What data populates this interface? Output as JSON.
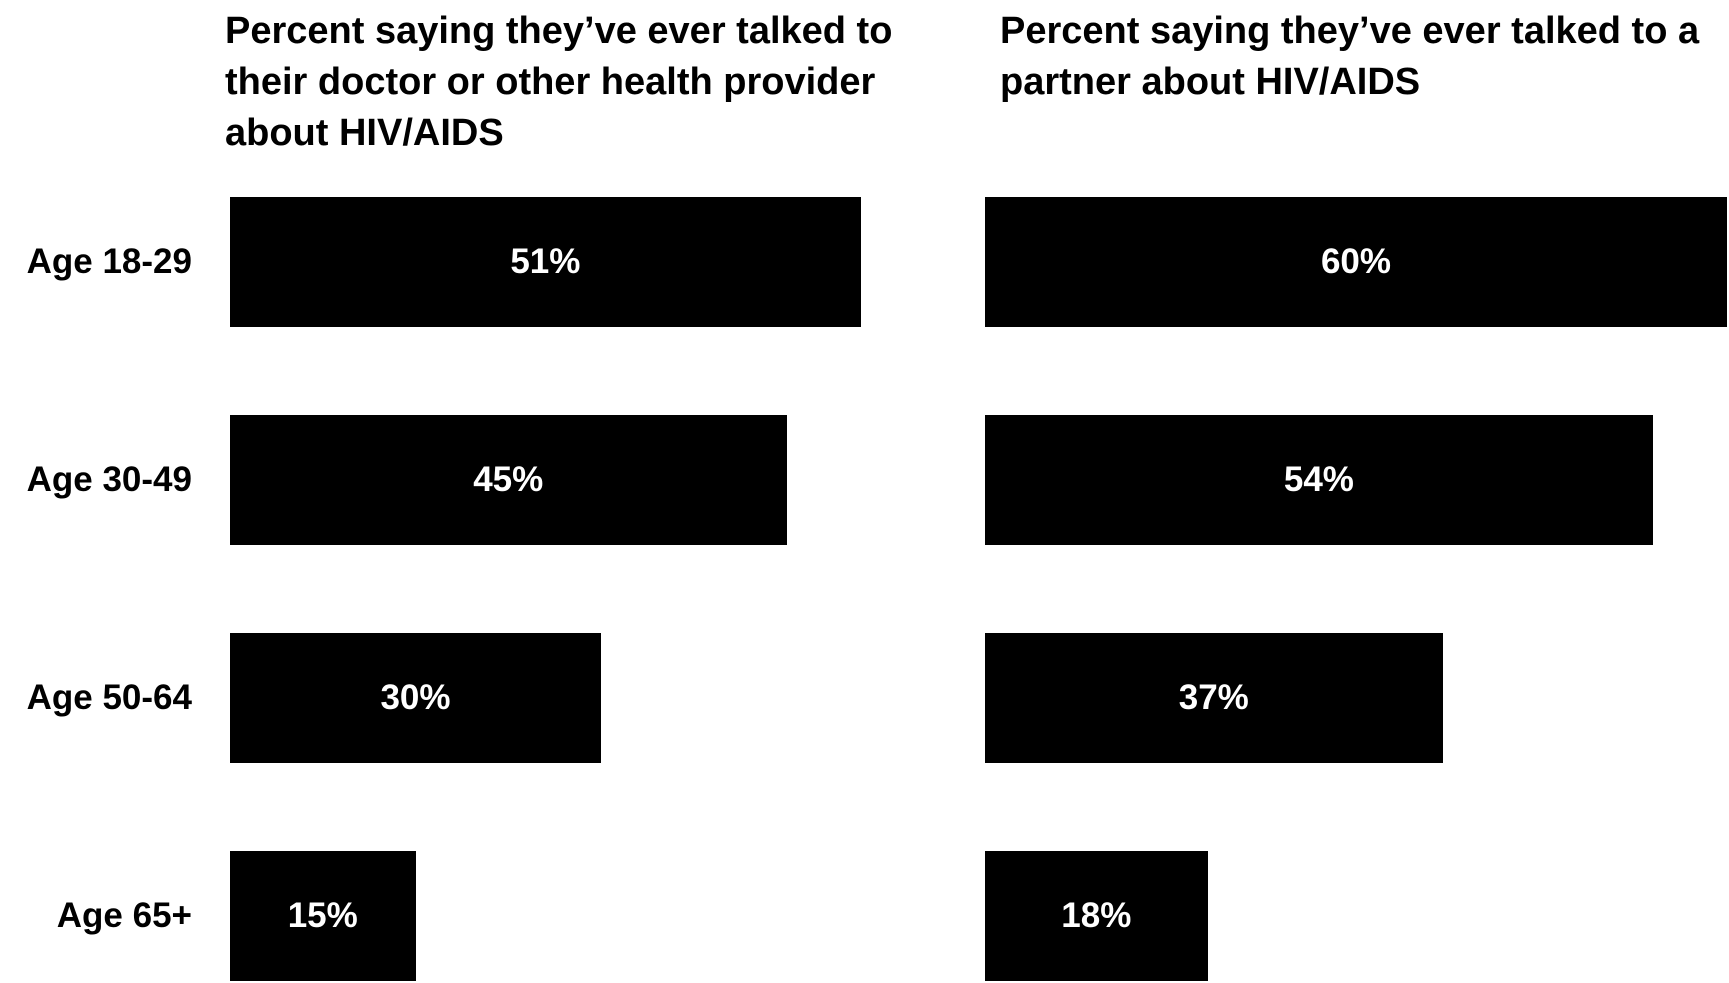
{
  "chart_data": {
    "type": "bar",
    "orientation": "horizontal",
    "categories": [
      "Age 18-29",
      "Age 30-49",
      "Age 50-64",
      "Age 65+"
    ],
    "panels": [
      {
        "title": "Percent saying they’ve ever talked to their doctor or other health provider about HIV/AIDS",
        "values": [
          51,
          45,
          30,
          15
        ],
        "labels": [
          "51%",
          "45%",
          "30%",
          "15%"
        ],
        "color": "#000000"
      },
      {
        "title": "Percent saying they’ve ever talked to a partner about HIV/AIDS",
        "values": [
          60,
          54,
          37,
          18
        ],
        "labels": [
          "60%",
          "54%",
          "37%",
          "18%"
        ],
        "color": "#000000"
      }
    ],
    "xlim": [
      0,
      60
    ],
    "grid": false,
    "legend": "none",
    "value_label_color": "#ffffff"
  }
}
